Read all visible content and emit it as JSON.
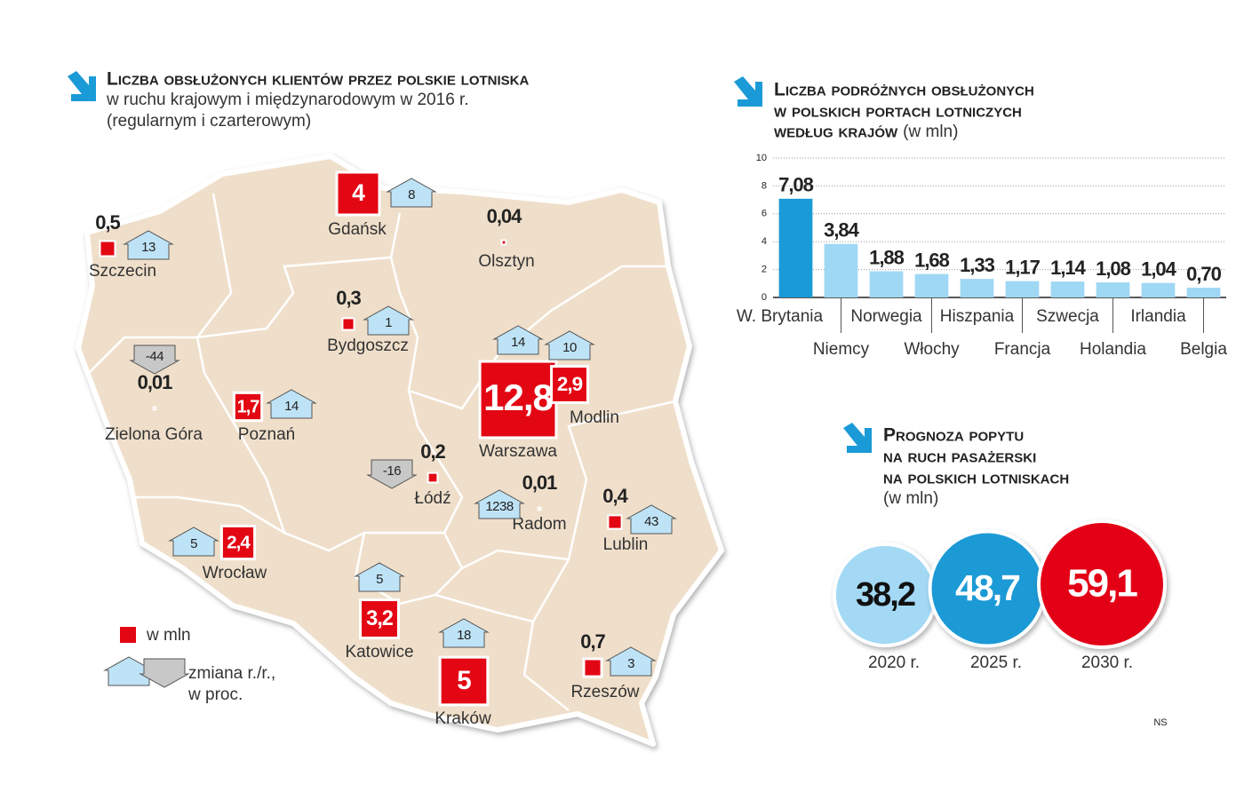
{
  "map": {
    "title": "Liczba obsłużonych klientów przez polskie lotniska",
    "subtitle": [
      "w ruchu krajowym i międzynarodowym w 2016 r.",
      "(regularnym i czarterowym)"
    ],
    "airports": [
      {
        "name": "Gdańsk",
        "value": 4,
        "value_label": "4",
        "change": 8
      },
      {
        "name": "Szczecin",
        "value": 0.5,
        "value_label": "0,5",
        "change": 13
      },
      {
        "name": "Olsztyn",
        "value": 0.04,
        "value_label": "0,04"
      },
      {
        "name": "Bydgoszcz",
        "value": 0.3,
        "value_label": "0,3",
        "change": 1
      },
      {
        "name": "Zielona Góra",
        "value": 0.01,
        "value_label": "0,01",
        "change": -44
      },
      {
        "name": "Poznań",
        "value": 1.7,
        "value_label": "1,7",
        "change": 14
      },
      {
        "name": "Łódź",
        "value": 0.2,
        "value_label": "0,2",
        "change": -16
      },
      {
        "name": "Warszawa",
        "value": 12.8,
        "value_label": "12,8",
        "change": 14
      },
      {
        "name": "Modlin",
        "value": 2.9,
        "value_label": "2,9",
        "change": 10
      },
      {
        "name": "Radom",
        "value": 0.01,
        "value_label": "0,01",
        "change": 1238
      },
      {
        "name": "Lublin",
        "value": 0.4,
        "value_label": "0,4",
        "change": 43
      },
      {
        "name": "Wrocław",
        "value": 2.4,
        "value_label": "2,4",
        "change": 5
      },
      {
        "name": "Katowice",
        "value": 3.2,
        "value_label": "3,2",
        "change": 5
      },
      {
        "name": "Kraków",
        "value": 5,
        "value_label": "5",
        "change": 18
      },
      {
        "name": "Rzeszów",
        "value": 0.7,
        "value_label": "0,7",
        "change": 3
      }
    ],
    "legend": {
      "unit": "w mln",
      "change": [
        "zmiana r./r.,",
        "w proc."
      ]
    }
  },
  "chart_data": [
    {
      "type": "bar",
      "title": [
        "Liczba podróżnych obsłużonych",
        "w polskich portach lotniczych",
        "według krajów"
      ],
      "unit": "(w mln)",
      "categories": [
        "W. Brytania",
        "Niemcy",
        "Norwegia",
        "Włochy",
        "Hiszpania",
        "Francja",
        "Szwecja",
        "Holandia",
        "Irlandia",
        "Belgia"
      ],
      "values": [
        7.08,
        3.84,
        1.88,
        1.68,
        1.33,
        1.17,
        1.14,
        1.08,
        1.04,
        0.7
      ],
      "value_labels": [
        "7,08",
        "3,84",
        "1,88",
        "1,68",
        "1,33",
        "1,17",
        "1,14",
        "1,08",
        "1,04",
        "0,70"
      ],
      "colors": [
        "#1a9ad6",
        "#9fd8f4",
        "#9fd8f4",
        "#9fd8f4",
        "#9fd8f4",
        "#9fd8f4",
        "#9fd8f4",
        "#9fd8f4",
        "#9fd8f4",
        "#9fd8f4"
      ],
      "ylim": [
        0,
        10
      ],
      "yticks": [
        0,
        2,
        4,
        6,
        8,
        10
      ],
      "grid": true
    },
    {
      "type": "bubble",
      "title": [
        "Prognoza popytu",
        "na ruch pasażerski",
        "na polskich lotniskach"
      ],
      "unit": "(w mln)",
      "categories": [
        "2020 r.",
        "2025 r.",
        "2030 r."
      ],
      "values": [
        38.2,
        48.7,
        59.1
      ],
      "value_labels": [
        "38,2",
        "48,7",
        "59,1"
      ],
      "colors": [
        "#a3d9f5",
        "#1a9ad6",
        "#e30613"
      ]
    }
  ],
  "credit": "NS"
}
